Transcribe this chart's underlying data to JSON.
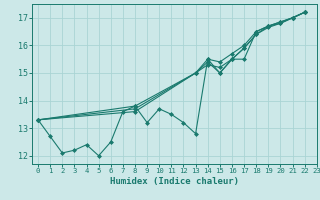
{
  "title": "",
  "xlabel": "Humidex (Indice chaleur)",
  "xlim": [
    -0.5,
    23
  ],
  "ylim": [
    11.7,
    17.5
  ],
  "xticks": [
    0,
    1,
    2,
    3,
    4,
    5,
    6,
    7,
    8,
    9,
    10,
    11,
    12,
    13,
    14,
    15,
    16,
    17,
    18,
    19,
    20,
    21,
    22,
    23
  ],
  "yticks": [
    12,
    13,
    14,
    15,
    16,
    17
  ],
  "background_color": "#cce8e8",
  "grid_color": "#aad4d4",
  "line_color": "#1a7a6e",
  "line1_x": [
    0,
    1,
    2,
    3,
    4,
    5,
    6,
    7,
    8,
    9,
    10,
    11,
    12,
    13,
    14,
    15,
    16,
    17,
    18,
    19,
    20,
    21,
    22
  ],
  "line1_y": [
    13.3,
    12.7,
    12.1,
    12.2,
    12.4,
    12.0,
    12.5,
    13.6,
    13.8,
    13.2,
    13.7,
    13.5,
    13.2,
    12.8,
    15.5,
    15.0,
    15.5,
    15.5,
    16.5,
    16.7,
    16.8,
    17.0,
    17.2
  ],
  "line2_x": [
    0,
    8,
    13,
    14,
    15,
    16,
    17,
    18,
    19,
    20,
    21,
    22
  ],
  "line2_y": [
    13.3,
    13.8,
    15.0,
    15.5,
    15.4,
    15.7,
    16.0,
    16.5,
    16.7,
    16.85,
    17.0,
    17.2
  ],
  "line3_x": [
    0,
    8,
    13,
    14,
    15,
    16,
    17,
    18,
    19,
    20,
    21,
    22
  ],
  "line3_y": [
    13.3,
    13.7,
    15.0,
    15.3,
    15.2,
    15.5,
    15.9,
    16.4,
    16.7,
    16.85,
    17.0,
    17.2
  ],
  "line4_x": [
    0,
    8,
    13,
    14,
    15,
    16,
    17,
    18,
    19,
    20,
    21,
    22
  ],
  "line4_y": [
    13.3,
    13.6,
    15.0,
    15.4,
    15.0,
    15.5,
    15.9,
    16.4,
    16.65,
    16.8,
    17.0,
    17.2
  ]
}
